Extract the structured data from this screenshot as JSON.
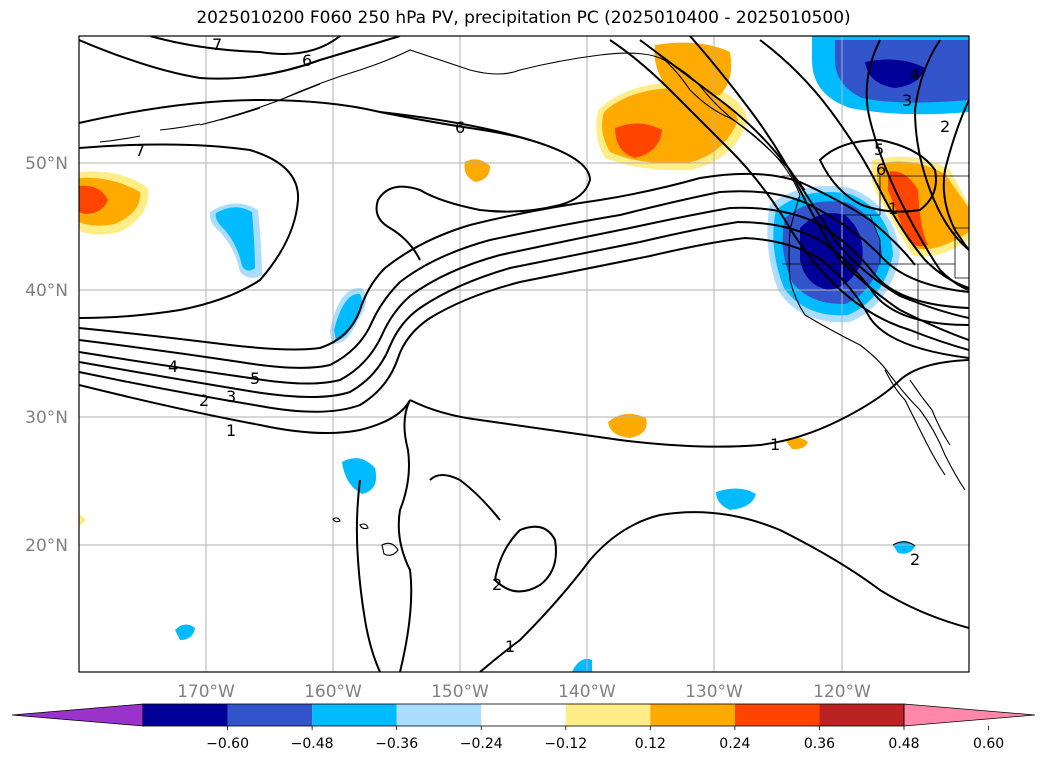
{
  "title": "2025010200 F060 250 hPa PV, precipitation PC (2025010400 - 2025010500)",
  "map": {
    "lon_ticks": [
      "170°W",
      "160°W",
      "150°W",
      "140°W",
      "130°W",
      "120°W"
    ],
    "lat_ticks": [
      "50°N",
      "40°N",
      "30°N",
      "20°N"
    ],
    "extent": {
      "lon_min": -180,
      "lon_max": -110,
      "lat_min": 10,
      "lat_max": 60
    },
    "contour_labels": [
      "7",
      "6",
      "6",
      "7",
      "4",
      "5",
      "3",
      "2",
      "1",
      "1",
      "2",
      "1",
      "5",
      "6",
      "4",
      "3",
      "2",
      "2",
      "1"
    ]
  },
  "colorbar": {
    "ticks": [
      "−0.60",
      "−0.48",
      "−0.36",
      "−0.24",
      "−0.12",
      "0.12",
      "0.24",
      "0.36",
      "0.48",
      "0.60"
    ],
    "colors": [
      "#9933cc",
      "#000099",
      "#3355cc",
      "#00bbff",
      "#aaddff",
      "#ffffff",
      "#ffee88",
      "#ffaa00",
      "#ff4400",
      "#bb2222",
      "#ff88aa"
    ]
  }
}
